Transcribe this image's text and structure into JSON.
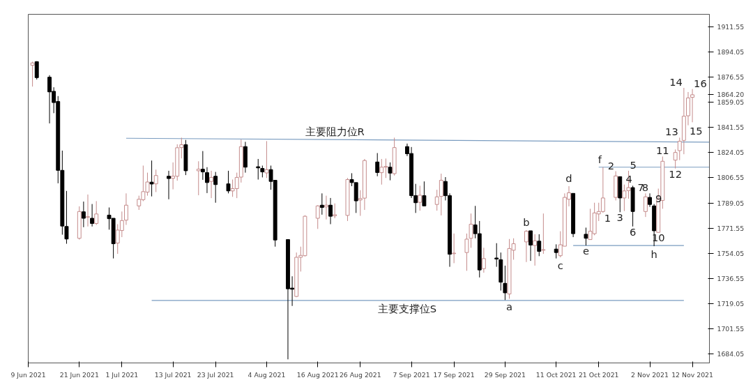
{
  "chart_data": {
    "type": "candlestick",
    "x": [
      "2021-06-10",
      "2021-06-11",
      "2021-06-14",
      "2021-06-15",
      "2021-06-16",
      "2021-06-17",
      "2021-06-18",
      "2021-06-21",
      "2021-06-22",
      "2021-06-23",
      "2021-06-24",
      "2021-06-25",
      "2021-06-28",
      "2021-06-29",
      "2021-06-30",
      "2021-07-01",
      "2021-07-02",
      "2021-07-05",
      "2021-07-06",
      "2021-07-07",
      "2021-07-08",
      "2021-07-09",
      "2021-07-12",
      "2021-07-13",
      "2021-07-14",
      "2021-07-15",
      "2021-07-16",
      "2021-07-19",
      "2021-07-20",
      "2021-07-21",
      "2021-07-22",
      "2021-07-23",
      "2021-07-26",
      "2021-07-27",
      "2021-07-28",
      "2021-07-29",
      "2021-07-30",
      "2021-08-02",
      "2021-08-03",
      "2021-08-04",
      "2021-08-05",
      "2021-08-06",
      "2021-08-09",
      "2021-08-10",
      "2021-08-11",
      "2021-08-12",
      "2021-08-13",
      "2021-08-16",
      "2021-08-17",
      "2021-08-18",
      "2021-08-19",
      "2021-08-20",
      "2021-08-23",
      "2021-08-24",
      "2021-08-25",
      "2021-08-26",
      "2021-08-27",
      "2021-08-30",
      "2021-08-31",
      "2021-09-01",
      "2021-09-02",
      "2021-09-03",
      "2021-09-06",
      "2021-09-07",
      "2021-09-08",
      "2021-09-09",
      "2021-09-10",
      "2021-09-13",
      "2021-09-14",
      "2021-09-15",
      "2021-09-16",
      "2021-09-17",
      "2021-09-20",
      "2021-09-21",
      "2021-09-22",
      "2021-09-23",
      "2021-09-24",
      "2021-09-27",
      "2021-09-28",
      "2021-09-29",
      "2021-09-30",
      "2021-10-01",
      "2021-10-04",
      "2021-10-05",
      "2021-10-06",
      "2021-10-07",
      "2021-10-08",
      "2021-10-11",
      "2021-10-12",
      "2021-10-13",
      "2021-10-14",
      "2021-10-15",
      "2021-10-18",
      "2021-10-19",
      "2021-10-20",
      "2021-10-21",
      "2021-10-22",
      "2021-10-25",
      "2021-10-26",
      "2021-10-27",
      "2021-10-28",
      "2021-10-29",
      "2021-11-01",
      "2021-11-02",
      "2021-11-03",
      "2021-11-04",
      "2021-11-05",
      "2021-11-08",
      "2021-11-09",
      "2021-11-10",
      "2021-11-11",
      "2021-11-12"
    ],
    "ohlc": [
      [
        1884.7,
        1887.2,
        1869.9,
        1886.3
      ],
      [
        1887.2,
        1887.5,
        1874.8,
        1876.1
      ],
      [
        1876.4,
        1877.8,
        1844.3,
        1866.2
      ],
      [
        1866.6,
        1869.4,
        1851.4,
        1858.8
      ],
      [
        1859.5,
        1863.3,
        1802.7,
        1811.7
      ],
      [
        1811.7,
        1825.4,
        1767.0,
        1773.0
      ],
      [
        1772.7,
        1797.4,
        1760.7,
        1764.0
      ],
      [
        1764.5,
        1786.7,
        1763.6,
        1783.1
      ],
      [
        1782.9,
        1790.0,
        1772.2,
        1778.4
      ],
      [
        1779.1,
        1794.9,
        1772.7,
        1779.5
      ],
      [
        1778.4,
        1788.3,
        1772.7,
        1774.8
      ],
      [
        1774.8,
        1790.3,
        1773.8,
        1781.4
      ],
      [
        1780.6,
        1785.9,
        1770.5,
        1778.1
      ],
      [
        1778.4,
        1778.4,
        1750.5,
        1760.7
      ],
      [
        1761.2,
        1774.3,
        1753.7,
        1770.2
      ],
      [
        1769.9,
        1783.1,
        1765.3,
        1776.8
      ],
      [
        1777.1,
        1795.7,
        1773.8,
        1787.5
      ],
      [
        1787.0,
        1794.1,
        1784.2,
        1791.6
      ],
      [
        1791.3,
        1815.0,
        1790.3,
        1796.9
      ],
      [
        1796.6,
        1810.1,
        1794.1,
        1803.6
      ],
      [
        1803.5,
        1818.5,
        1793.6,
        1802.2
      ],
      [
        1802.3,
        1812.2,
        1796.6,
        1808.1
      ],
      [
        1807.6,
        1811.4,
        1791.6,
        1806.0
      ],
      [
        1806.1,
        1817.2,
        1798.5,
        1807.6
      ],
      [
        1807.6,
        1829.8,
        1804.5,
        1827.4
      ],
      [
        1827.5,
        1834.4,
        1820.0,
        1829.5
      ],
      [
        1829.5,
        1832.8,
        1808.4,
        1811.4
      ],
      [
        1811.4,
        1818.0,
        1794.4,
        1812.5
      ],
      [
        1812.5,
        1825.1,
        1805.1,
        1810.6
      ],
      [
        1810.1,
        1813.9,
        1795.9,
        1803.2
      ],
      [
        1804.0,
        1811.4,
        1792.4,
        1806.8
      ],
      [
        1807.6,
        1810.6,
        1789.2,
        1801.8
      ],
      [
        1802.3,
        1811.4,
        1795.7,
        1797.4
      ],
      [
        1797.4,
        1805.3,
        1793.3,
        1799.0
      ],
      [
        1799.0,
        1810.1,
        1792.4,
        1806.8
      ],
      [
        1807.0,
        1833.1,
        1803.2,
        1828.2
      ],
      [
        1828.2,
        1831.5,
        1810.1,
        1813.9
      ],
      [
        1814.2,
        1819.6,
        1805.3,
        1813.4
      ],
      [
        1813.0,
        1815.0,
        1806.8,
        1810.6
      ],
      [
        1809.9,
        1832.0,
        1806.4,
        1812.2
      ],
      [
        1812.2,
        1815.0,
        1798.2,
        1804.0
      ],
      [
        1804.8,
        1804.8,
        1758.7,
        1763.3
      ],
      [
        1763.6,
        1763.6,
        1680.4,
        1729.4
      ],
      [
        1729.9,
        1738.1,
        1717.5,
        1729.1
      ],
      [
        1724.1,
        1754.6,
        1723.6,
        1751.3
      ],
      [
        1751.3,
        1758.7,
        1741.4,
        1752.6
      ],
      [
        1752.4,
        1780.5,
        1751.9,
        1779.8
      ],
      [
        1778.4,
        1787.5,
        1771.0,
        1787.0
      ],
      [
        1787.5,
        1795.7,
        1780.9,
        1785.9
      ],
      [
        1786.3,
        1794.1,
        1777.6,
        1787.5
      ],
      [
        1787.5,
        1792.5,
        1774.3,
        1779.8
      ],
      [
        1780.1,
        1788.7,
        1778.4,
        1780.9
      ],
      [
        1780.4,
        1806.4,
        1776.5,
        1805.3
      ],
      [
        1805.3,
        1809.7,
        1800.7,
        1803.2
      ],
      [
        1803.2,
        1803.2,
        1782.1,
        1790.5
      ],
      [
        1791.1,
        1797.9,
        1780.1,
        1792.1
      ],
      [
        1792.4,
        1819.6,
        1784.2,
        1818.5
      ],
      [
        1817.5,
        1823.7,
        1807.6,
        1810.2
      ],
      [
        1810.1,
        1819.6,
        1801.8,
        1813.9
      ],
      [
        1813.9,
        1819.9,
        1806.4,
        1814.4
      ],
      [
        1813.9,
        1817.2,
        1804.8,
        1809.8
      ],
      [
        1809.4,
        1834.4,
        1808.1,
        1827.5
      ],
      [
        1828.2,
        1830.3,
        1821.6,
        1823.2
      ],
      [
        1823.4,
        1827.9,
        1792.5,
        1794.1
      ],
      [
        1794.1,
        1802.3,
        1782.1,
        1789.2
      ],
      [
        1789.5,
        1801.0,
        1783.7,
        1794.4
      ],
      [
        1794.1,
        1804.0,
        1787.0,
        1787.0
      ],
      [
        1788.0,
        1798.2,
        1783.7,
        1793.3
      ],
      [
        1793.6,
        1809.4,
        1780.4,
        1804.8
      ],
      [
        1804.0,
        1807.0,
        1790.8,
        1794.1
      ],
      [
        1794.1,
        1795.7,
        1744.7,
        1753.4
      ],
      [
        1753.8,
        1767.8,
        1747.2,
        1754.2
      ],
      [
        1754.6,
        1767.8,
        1741.9,
        1763.9
      ],
      [
        1764.5,
        1781.7,
        1757.9,
        1774.3
      ],
      [
        1773.8,
        1787.0,
        1764.5,
        1767.7
      ],
      [
        1767.7,
        1776.5,
        1737.3,
        1742.5
      ],
      [
        1743.4,
        1757.9,
        1740.6,
        1750.4
      ],
      [
        1750.8,
        1761.1,
        1744.7,
        1750.1
      ],
      [
        1749.6,
        1754.6,
        1728.2,
        1734.0
      ],
      [
        1733.2,
        1745.5,
        1721.6,
        1726.6
      ],
      [
        1725.8,
        1764.0,
        1722.5,
        1757.4
      ],
      [
        1756.2,
        1764.5,
        1749.6,
        1760.7
      ],
      [
        1762.0,
        1770.2,
        1748.0,
        1769.4
      ],
      [
        1769.7,
        1769.7,
        1748.8,
        1759.8
      ],
      [
        1759.5,
        1767.3,
        1745.5,
        1762.8
      ],
      [
        1762.5,
        1767.3,
        1752.1,
        1755.4
      ],
      [
        1756.2,
        1781.7,
        1753.7,
        1756.6
      ],
      [
        1757.0,
        1760.3,
        1750.5,
        1754.6
      ],
      [
        1752.4,
        1769.4,
        1751.3,
        1760.0
      ],
      [
        1759.0,
        1795.7,
        1759.0,
        1792.9
      ],
      [
        1791.6,
        1800.7,
        1786.7,
        1796.1
      ],
      [
        1795.7,
        1795.7,
        1765.3,
        1767.7
      ],
      [
        1767.3,
        1771.9,
        1759.5,
        1764.5
      ],
      [
        1763.6,
        1785.0,
        1763.6,
        1769.4
      ],
      [
        1767.7,
        1789.2,
        1766.6,
        1782.1
      ],
      [
        1781.4,
        1789.2,
        1776.5,
        1783.1
      ],
      [
        1783.1,
        1813.9,
        1782.2,
        1792.5
      ],
      [
        1792.9,
        1811.1,
        1790.8,
        1807.8
      ],
      [
        1807.3,
        1807.3,
        1782.6,
        1792.5
      ],
      [
        1792.5,
        1801.8,
        1783.4,
        1797.4
      ],
      [
        1797.6,
        1811.4,
        1792.0,
        1799.7
      ],
      [
        1799.7,
        1801.0,
        1772.7,
        1783.1
      ],
      [
        1783.1,
        1795.7,
        1779.3,
        1793.3
      ],
      [
        1792.9,
        1795.7,
        1786.3,
        1788.0
      ],
      [
        1787.0,
        1788.3,
        1759.0,
        1769.7
      ],
      [
        1768.6,
        1799.0,
        1768.6,
        1791.6
      ],
      [
        1790.8,
        1821.3,
        1785.0,
        1818.0
      ],
      [
        1818.8,
        1826.2,
        1813.0,
        1824.1
      ],
      [
        1825.4,
        1834.4,
        1818.8,
        1831.9
      ],
      [
        1832.5,
        1869.0,
        1822.9,
        1849.3
      ],
      [
        1849.6,
        1866.1,
        1843.0,
        1862.0
      ],
      [
        1862.4,
        1868.2,
        1845.1,
        1864.2
      ]
    ],
    "colors": [
      "#c48b8b",
      "#000000",
      "#000000",
      "#000000",
      "#000000",
      "#000000",
      "#000000",
      "#c48b8b",
      "#000000",
      "#c48b8b",
      "#000000",
      "#c48b8b",
      "#000000",
      "#000000",
      "#c48b8b",
      "#c48b8b",
      "#c48b8b",
      "#c48b8b",
      "#c48b8b",
      "#c48b8b",
      "#000000",
      "#c48b8b",
      "#000000",
      "#c48b8b",
      "#c48b8b",
      "#c48b8b",
      "#000000",
      "#c48b8b",
      "#000000",
      "#000000",
      "#c48b8b",
      "#000000",
      "#000000",
      "#c48b8b",
      "#c48b8b",
      "#c48b8b",
      "#000000",
      "#000000",
      "#000000",
      "#c48b8b",
      "#000000",
      "#000000",
      "#000000",
      "#000000",
      "#c48b8b",
      "#c48b8b",
      "#c48b8b",
      "#c48b8b",
      "#000000",
      "#c48b8b",
      "#000000",
      "#c48b8b",
      "#c48b8b",
      "#000000",
      "#000000",
      "#c48b8b",
      "#c48b8b",
      "#000000",
      "#c48b8b",
      "#c48b8b",
      "#000000",
      "#c48b8b",
      "#000000",
      "#000000",
      "#000000",
      "#c48b8b",
      "#000000",
      "#c48b8b",
      "#c48b8b",
      "#000000",
      "#000000",
      "#c48b8b",
      "#c48b8b",
      "#c48b8b",
      "#000000",
      "#000000",
      "#c48b8b",
      "#000000",
      "#000000",
      "#000000",
      "#c48b8b",
      "#c48b8b",
      "#c48b8b",
      "#000000",
      "#c48b8b",
      "#000000",
      "#c48b8b",
      "#000000",
      "#c48b8b",
      "#c48b8b",
      "#c48b8b",
      "#000000",
      "#000000",
      "#c48b8b",
      "#c48b8b",
      "#c48b8b",
      "#c48b8b",
      "#c48b8b",
      "#000000",
      "#c48b8b",
      "#c48b8b",
      "#000000",
      "#c48b8b",
      "#000000",
      "#000000",
      "#c48b8b",
      "#c48b8b",
      "#c48b8b",
      "#c48b8b",
      "#c48b8b",
      "#c48b8b",
      "#c48b8b"
    ],
    "series": [
      {
        "type": "line",
        "color": "#7a9cc0",
        "x": [
          "2021-07-02",
          "2021-11-16"
        ],
        "values": [
          1834.0,
          1831.3
        ]
      },
      {
        "type": "line",
        "color": "#7a9cc0",
        "x": [
          "2021-07-08",
          "2021-11-10"
        ],
        "values": [
          1721.3,
          1721.3
        ]
      },
      {
        "type": "line",
        "color": "#7a9cc0",
        "x": [
          "2021-10-21",
          "2021-11-16"
        ],
        "values": [
          1813.9,
          1813.9
        ]
      },
      {
        "type": "line",
        "color": "#7a9cc0",
        "x": [
          "2021-10-15",
          "2021-11-10"
        ],
        "values": [
          1759.5,
          1759.5
        ]
      }
    ],
    "annotations": [
      {
        "text": "主要阻力位R",
        "x": "2021-08-20",
        "y": 1833.0
      },
      {
        "text": "主要支撑位S",
        "x": "2021-09-06",
        "y": 1721.3
      },
      {
        "text": "a",
        "x": "2021-09-30",
        "y": 1722.5
      },
      {
        "text": "b",
        "x": "2021-10-04",
        "y": 1770.2
      },
      {
        "text": "c",
        "x": "2021-10-12",
        "y": 1751.3
      },
      {
        "text": "d",
        "x": "2021-10-14",
        "y": 1800.7
      },
      {
        "text": "e",
        "x": "2021-10-18",
        "y": 1759.5
      },
      {
        "text": "f",
        "x": "2021-10-22",
        "y": 1813.9
      },
      {
        "text": "1",
        "x": "2021-10-22",
        "y": 1782.2
      },
      {
        "text": "2",
        "x": "2021-10-25",
        "y": 1811.1
      },
      {
        "text": "3",
        "x": "2021-10-26",
        "y": 1782.6
      },
      {
        "text": "4",
        "x": "2021-10-27",
        "y": 1801.8
      },
      {
        "text": "5",
        "x": "2021-10-28",
        "y": 1811.4
      },
      {
        "text": "6",
        "x": "2021-10-29",
        "y": 1772.7
      },
      {
        "text": "7",
        "x": "2021-11-01",
        "y": 1795.7
      },
      {
        "text": "8",
        "x": "2021-11-02",
        "y": 1795.7
      },
      {
        "text": "9",
        "x": "2021-11-03",
        "y": 1788.3
      },
      {
        "text": "h",
        "x": "2021-11-03",
        "y": 1759.0
      },
      {
        "text": "10",
        "x": "2021-11-04",
        "y": 1768.6
      },
      {
        "text": "11",
        "x": "2021-11-05",
        "y": 1821.3
      },
      {
        "text": "12",
        "x": "2021-11-08",
        "y": 1813.0
      },
      {
        "text": "13",
        "x": "2021-11-09",
        "y": 1834.4
      },
      {
        "text": "14",
        "x": "2021-11-10",
        "y": 1869.0
      },
      {
        "text": "15",
        "x": "2021-11-11",
        "y": 1843.0
      },
      {
        "text": "16",
        "x": "2021-11-12",
        "y": 1868.2
      }
    ],
    "xlim": [
      "2021-06-09",
      "2021-11-16"
    ],
    "xticks": [
      {
        "value": "2021-06-09",
        "label": "9 Jun 2021"
      },
      {
        "value": "2021-06-21",
        "label": "21 Jun 2021"
      },
      {
        "value": "2021-07-01",
        "label": "1 Jul 2021"
      },
      {
        "value": "2021-07-13",
        "label": "13 Jul 2021"
      },
      {
        "value": "2021-07-23",
        "label": "23 Jul 2021"
      },
      {
        "value": "2021-08-04",
        "label": "4 Aug 2021"
      },
      {
        "value": "2021-08-16",
        "label": "16 Aug 2021"
      },
      {
        "value": "2021-08-26",
        "label": "26 Aug 2021"
      },
      {
        "value": "2021-09-07",
        "label": "7 Sep 2021"
      },
      {
        "value": "2021-09-17",
        "label": "17 Sep 2021"
      },
      {
        "value": "2021-09-29",
        "label": "29 Sep 2021"
      },
      {
        "value": "2021-10-11",
        "label": "11 Oct 2021"
      },
      {
        "value": "2021-10-21",
        "label": "21 Oct 2021"
      },
      {
        "value": "2021-11-02",
        "label": "2 Nov 2021"
      },
      {
        "value": "2021-11-12",
        "label": "12 Nov 2021"
      }
    ],
    "ylim": [
      1677.9,
      1920.1
    ],
    "yticks": [
      1684.05,
      1701.55,
      1719.05,
      1736.55,
      1754.05,
      1771.55,
      1789.05,
      1806.55,
      1824.05,
      1841.55,
      1859.05,
      {
        "value": 1864.2,
        "label": "1864.20"
      },
      1876.55,
      1894.05,
      1911.55
    ],
    "grid": false
  }
}
